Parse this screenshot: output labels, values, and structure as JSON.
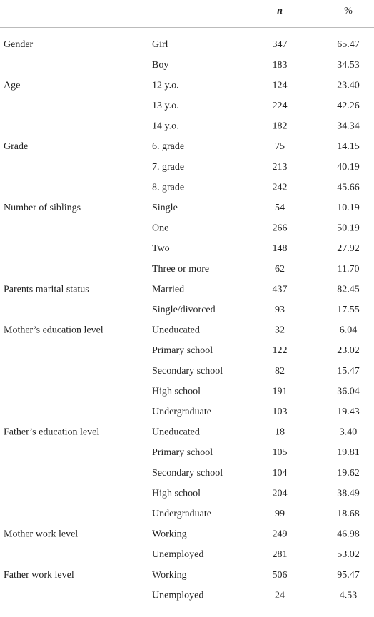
{
  "table": {
    "header": [
      "n",
      "%"
    ],
    "groups": [
      {
        "label": "Gender",
        "rows": [
          [
            "Girl",
            "347",
            "65.47"
          ],
          [
            "Boy",
            "183",
            "34.53"
          ]
        ]
      },
      {
        "label": "Age",
        "rows": [
          [
            "12 y.o.",
            "124",
            "23.40"
          ],
          [
            "13 y.o.",
            "224",
            "42.26"
          ],
          [
            "14 y.o.",
            "182",
            "34.34"
          ]
        ]
      },
      {
        "label": "Grade",
        "rows": [
          [
            "6. grade",
            "75",
            "14.15"
          ],
          [
            "7. grade",
            "213",
            "40.19"
          ],
          [
            "8. grade",
            "242",
            "45.66"
          ]
        ]
      },
      {
        "label": "Number of siblings",
        "rows": [
          [
            "Single",
            "54",
            "10.19"
          ],
          [
            "One",
            "266",
            "50.19"
          ],
          [
            "Two",
            "148",
            "27.92"
          ],
          [
            "Three or more",
            "62",
            "11.70"
          ]
        ]
      },
      {
        "label": "Parents marital status",
        "rows": [
          [
            "Married",
            "437",
            "82.45"
          ],
          [
            "Single/divorced",
            "93",
            "17.55"
          ]
        ]
      },
      {
        "label": "Mother’s education level",
        "rows": [
          [
            "Uneducated",
            "32",
            "6.04"
          ],
          [
            "Primary school",
            "122",
            "23.02"
          ],
          [
            "Secondary school",
            "82",
            "15.47"
          ],
          [
            "High school",
            "191",
            "36.04"
          ],
          [
            "Undergraduate",
            "103",
            "19.43"
          ]
        ]
      },
      {
        "label": "Father’s education level",
        "rows": [
          [
            "Uneducated",
            "18",
            "3.40"
          ],
          [
            "Primary school",
            "105",
            "19.81"
          ],
          [
            "Secondary school",
            "104",
            "19.62"
          ],
          [
            "High school",
            "204",
            "38.49"
          ],
          [
            "Undergraduate",
            "99",
            "18.68"
          ]
        ]
      },
      {
        "label": "Mother work level",
        "rows": [
          [
            "Working",
            "249",
            "46.98"
          ],
          [
            "Unemployed",
            "281",
            "53.02"
          ]
        ]
      },
      {
        "label": "Father work level",
        "rows": [
          [
            "Working",
            "506",
            "95.47"
          ],
          [
            "Unemployed",
            "24",
            "4.53"
          ]
        ]
      }
    ]
  }
}
